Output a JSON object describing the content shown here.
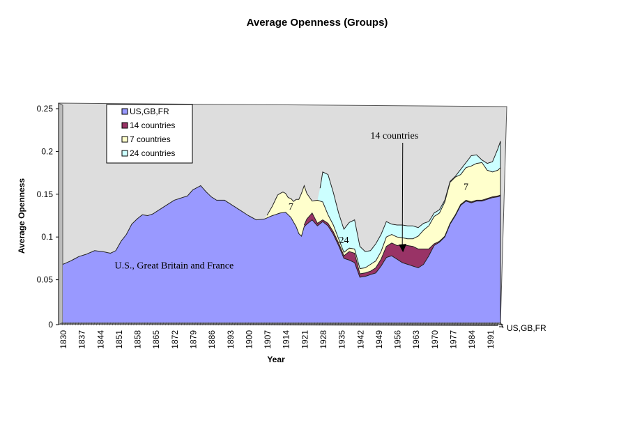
{
  "chart_data": {
    "type": "area",
    "title": "Average Openness  (Groups)",
    "xlabel": "Year",
    "ylabel": "Average Openness",
    "ylim": [
      0,
      0.25
    ],
    "y_ticks": [
      "0",
      "0.05",
      "0.1",
      "0.15",
      "0.2",
      "0.25"
    ],
    "x_ticks": [
      "1830",
      "1837",
      "1844",
      "1851",
      "1858",
      "1865",
      "1872",
      "1879",
      "1886",
      "1893",
      "1900",
      "1907",
      "1914",
      "1921",
      "1928",
      "1935",
      "1942",
      "1949",
      "1956",
      "1963",
      "1970",
      "1977",
      "1984",
      "1991"
    ],
    "x_range": [
      1830,
      1995
    ],
    "stacked": true,
    "legend_position": "top-left",
    "depth_axis_label": "US,GB,FR",
    "series": [
      {
        "name": "US,GB,FR",
        "color": "#9999ff",
        "points": [
          [
            1830,
            0.068
          ],
          [
            1833,
            0.072
          ],
          [
            1836,
            0.077
          ],
          [
            1839,
            0.08
          ],
          [
            1842,
            0.084
          ],
          [
            1845,
            0.083
          ],
          [
            1848,
            0.081
          ],
          [
            1850,
            0.084
          ],
          [
            1852,
            0.095
          ],
          [
            1854,
            0.103
          ],
          [
            1856,
            0.115
          ],
          [
            1858,
            0.121
          ],
          [
            1860,
            0.126
          ],
          [
            1862,
            0.125
          ],
          [
            1864,
            0.127
          ],
          [
            1866,
            0.131
          ],
          [
            1869,
            0.137
          ],
          [
            1872,
            0.143
          ],
          [
            1875,
            0.146
          ],
          [
            1877,
            0.148
          ],
          [
            1879,
            0.155
          ],
          [
            1882,
            0.16
          ],
          [
            1884,
            0.153
          ],
          [
            1886,
            0.147
          ],
          [
            1888,
            0.143
          ],
          [
            1891,
            0.143
          ],
          [
            1894,
            0.137
          ],
          [
            1897,
            0.131
          ],
          [
            1900,
            0.125
          ],
          [
            1903,
            0.12
          ],
          [
            1906,
            0.121
          ],
          [
            1909,
            0.125
          ],
          [
            1912,
            0.128
          ],
          [
            1914,
            0.129
          ],
          [
            1916,
            0.123
          ],
          [
            1918,
            0.112
          ],
          [
            1919,
            0.104
          ],
          [
            1920,
            0.101
          ],
          [
            1921,
            0.112
          ],
          [
            1922,
            0.115
          ],
          [
            1924,
            0.12
          ],
          [
            1926,
            0.113
          ],
          [
            1928,
            0.118
          ],
          [
            1930,
            0.113
          ],
          [
            1932,
            0.103
          ],
          [
            1934,
            0.09
          ],
          [
            1936,
            0.075
          ],
          [
            1938,
            0.073
          ],
          [
            1940,
            0.07
          ],
          [
            1942,
            0.053
          ],
          [
            1944,
            0.054
          ],
          [
            1946,
            0.056
          ],
          [
            1948,
            0.058
          ],
          [
            1950,
            0.066
          ],
          [
            1952,
            0.076
          ],
          [
            1954,
            0.078
          ],
          [
            1956,
            0.074
          ],
          [
            1958,
            0.07
          ],
          [
            1960,
            0.068
          ],
          [
            1962,
            0.066
          ],
          [
            1964,
            0.064
          ],
          [
            1966,
            0.068
          ],
          [
            1968,
            0.078
          ],
          [
            1970,
            0.09
          ],
          [
            1972,
            0.094
          ],
          [
            1974,
            0.1
          ],
          [
            1976,
            0.115
          ],
          [
            1978,
            0.125
          ],
          [
            1980,
            0.137
          ],
          [
            1982,
            0.142
          ],
          [
            1984,
            0.14
          ],
          [
            1986,
            0.142
          ],
          [
            1988,
            0.142
          ],
          [
            1990,
            0.144
          ],
          [
            1992,
            0.146
          ],
          [
            1994,
            0.147
          ],
          [
            1995,
            0.148
          ]
        ]
      },
      {
        "name": "14 countries",
        "color": "#993366",
        "points": [
          [
            1920,
            0
          ],
          [
            1921,
            0.002
          ],
          [
            1922,
            0.006
          ],
          [
            1924,
            0.008
          ],
          [
            1926,
            0.003
          ],
          [
            1928,
            0.002
          ],
          [
            1930,
            0.003
          ],
          [
            1932,
            0.003
          ],
          [
            1934,
            0.003
          ],
          [
            1936,
            0.003
          ],
          [
            1938,
            0.01
          ],
          [
            1940,
            0.011
          ],
          [
            1942,
            0.004
          ],
          [
            1944,
            0.004
          ],
          [
            1946,
            0.004
          ],
          [
            1948,
            0.006
          ],
          [
            1950,
            0.008
          ],
          [
            1952,
            0.013
          ],
          [
            1954,
            0.015
          ],
          [
            1956,
            0.016
          ],
          [
            1958,
            0.021
          ],
          [
            1960,
            0.022
          ],
          [
            1962,
            0.023
          ],
          [
            1964,
            0.022
          ],
          [
            1966,
            0.018
          ],
          [
            1968,
            0.008
          ],
          [
            1970,
            0.002
          ],
          [
            1972,
            0.001
          ],
          [
            1974,
            0.001
          ],
          [
            1976,
            0.001
          ],
          [
            1978,
            0.001
          ],
          [
            1980,
            0.001
          ],
          [
            1982,
            0.001
          ],
          [
            1984,
            0.001
          ],
          [
            1986,
            0.001
          ],
          [
            1988,
            0.001
          ],
          [
            1990,
            0.001
          ],
          [
            1992,
            0.001
          ],
          [
            1994,
            0.001
          ],
          [
            1995,
            0.001
          ]
        ]
      },
      {
        "name": "7 countries",
        "color": "#ffffcc",
        "points": [
          [
            1906,
            0
          ],
          [
            1907,
            0.003
          ],
          [
            1909,
            0.011
          ],
          [
            1911,
            0.022
          ],
          [
            1913,
            0.024
          ],
          [
            1915,
            0.02
          ],
          [
            1917,
            0.024
          ],
          [
            1919,
            0.04
          ],
          [
            1920,
            0.05
          ],
          [
            1921,
            0.046
          ],
          [
            1922,
            0.03
          ],
          [
            1924,
            0.014
          ],
          [
            1926,
            0.027
          ],
          [
            1928,
            0.021
          ],
          [
            1930,
            0.01
          ],
          [
            1932,
            0.008
          ],
          [
            1934,
            0.005
          ],
          [
            1936,
            0.004
          ],
          [
            1938,
            0.004
          ],
          [
            1940,
            0.005
          ],
          [
            1942,
            0.006
          ],
          [
            1944,
            0.006
          ],
          [
            1946,
            0.008
          ],
          [
            1948,
            0.008
          ],
          [
            1950,
            0.009
          ],
          [
            1952,
            0.011
          ],
          [
            1954,
            0.01
          ],
          [
            1956,
            0.01
          ],
          [
            1958,
            0.008
          ],
          [
            1960,
            0.008
          ],
          [
            1962,
            0.009
          ],
          [
            1964,
            0.015
          ],
          [
            1966,
            0.022
          ],
          [
            1968,
            0.027
          ],
          [
            1970,
            0.032
          ],
          [
            1972,
            0.033
          ],
          [
            1974,
            0.04
          ],
          [
            1976,
            0.048
          ],
          [
            1978,
            0.044
          ],
          [
            1980,
            0.035
          ],
          [
            1982,
            0.038
          ],
          [
            1984,
            0.042
          ],
          [
            1986,
            0.043
          ],
          [
            1988,
            0.044
          ],
          [
            1990,
            0.033
          ],
          [
            1992,
            0.029
          ],
          [
            1994,
            0.03
          ],
          [
            1995,
            0.032
          ]
        ]
      },
      {
        "name": "24 countries",
        "color": "#ccffff",
        "points": [
          [
            1926,
            0
          ],
          [
            1927,
            0.015
          ],
          [
            1928,
            0.035
          ],
          [
            1930,
            0.047
          ],
          [
            1932,
            0.038
          ],
          [
            1934,
            0.03
          ],
          [
            1936,
            0.027
          ],
          [
            1938,
            0.03
          ],
          [
            1940,
            0.034
          ],
          [
            1942,
            0.026
          ],
          [
            1944,
            0.019
          ],
          [
            1946,
            0.016
          ],
          [
            1948,
            0.02
          ],
          [
            1950,
            0.02
          ],
          [
            1952,
            0.018
          ],
          [
            1954,
            0.012
          ],
          [
            1956,
            0.014
          ],
          [
            1958,
            0.015
          ],
          [
            1960,
            0.015
          ],
          [
            1962,
            0.015
          ],
          [
            1964,
            0.01
          ],
          [
            1966,
            0.008
          ],
          [
            1968,
            0.005
          ],
          [
            1970,
            0.004
          ],
          [
            1972,
            0.004
          ],
          [
            1974,
            0.002
          ],
          [
            1976,
            0.001
          ],
          [
            1978,
            0.001
          ],
          [
            1980,
            0.006
          ],
          [
            1982,
            0.006
          ],
          [
            1984,
            0.012
          ],
          [
            1986,
            0.01
          ],
          [
            1988,
            0.003
          ],
          [
            1990,
            0.008
          ],
          [
            1992,
            0.012
          ],
          [
            1994,
            0.025
          ],
          [
            1995,
            0.031
          ]
        ]
      }
    ],
    "annotations": [
      {
        "text": "U.S., Great Britain and France",
        "x": 1872,
        "y": 0.063
      },
      {
        "text": "14 countries",
        "x": 1955,
        "y": 0.215,
        "arrow_to": [
          1958,
          0.083
        ]
      },
      {
        "text": "7",
        "x": 1916,
        "y": 0.132
      },
      {
        "text": "24",
        "x": 1936,
        "y": 0.093
      },
      {
        "text": "7",
        "x": 1982,
        "y": 0.155
      }
    ]
  }
}
